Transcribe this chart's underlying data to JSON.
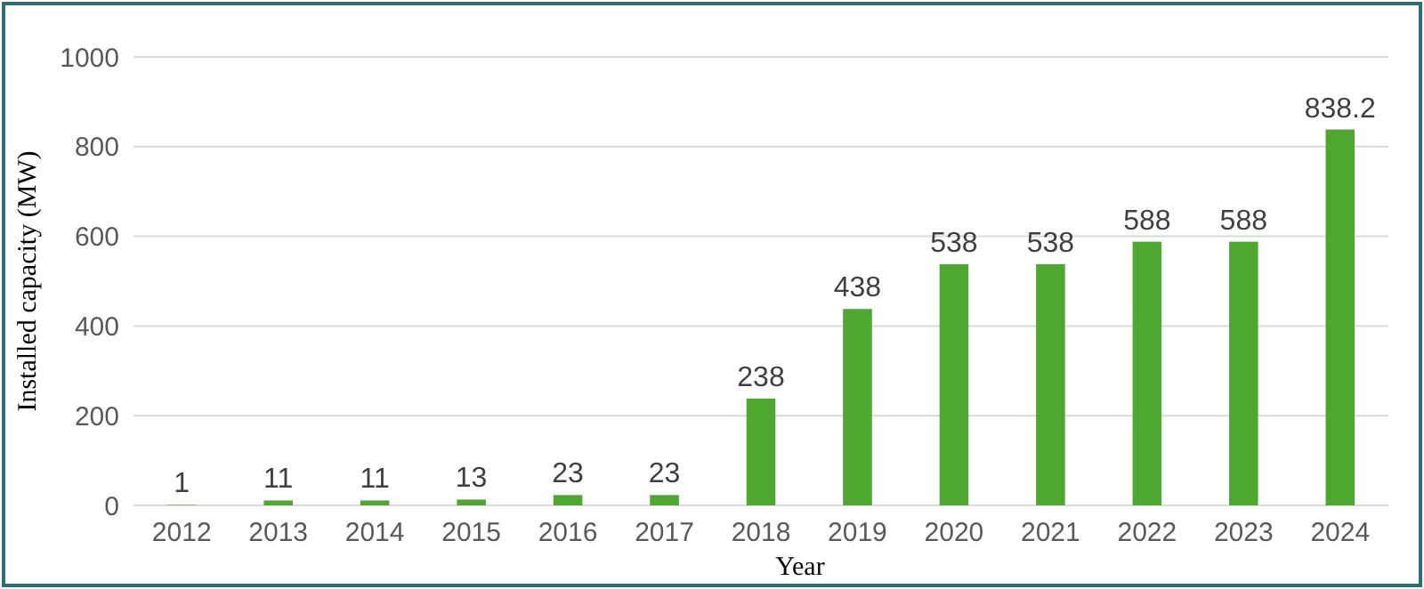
{
  "chart_data": {
    "type": "bar",
    "xlabel": "Year",
    "ylabel": "Installed capacity (MW)",
    "categories": [
      "2012",
      "2013",
      "2014",
      "2015",
      "2016",
      "2017",
      "2018",
      "2019",
      "2020",
      "2021",
      "2022",
      "2023",
      "2024"
    ],
    "values": [
      1,
      11,
      11,
      13,
      23,
      23,
      238,
      438,
      538,
      538,
      588,
      588,
      838.2
    ],
    "color": "#4ea72e",
    "ylim": [
      0,
      1000
    ],
    "yticks": [
      0,
      200,
      400,
      600,
      800,
      1000
    ],
    "grid": "y",
    "data_labels": true
  }
}
